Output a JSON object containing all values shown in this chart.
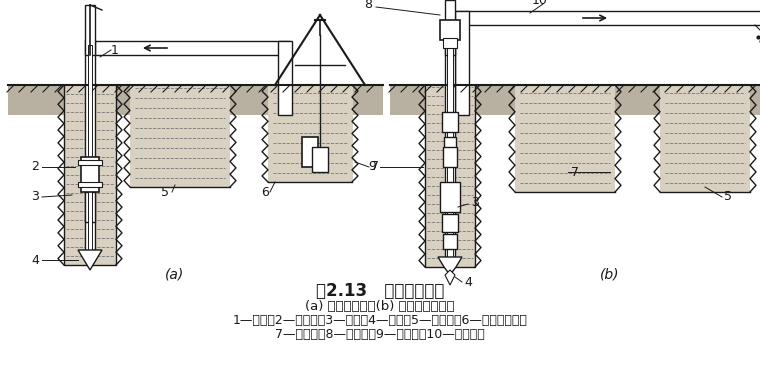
{
  "title": "图2.13   循环排渣方法",
  "subtitle": "(a) 正循环排渣；(b) 泵举反循环排渣",
  "legend1": "1—钻杆；2—送水管；3—主机；4—钻头；5—沉淀池；6—潜水泥浆泵；",
  "legend2": "7—泥浆池；8—砂石泵；9—抽渣管；10—排渣胶管",
  "label_a": "(a)",
  "label_b": "(b)",
  "bg": "#ffffff",
  "lc": "#1a1a1a",
  "ground_fill": "#b8b0a0",
  "mud_fill": "#d8d0c0",
  "title_fs": 12,
  "sub_fs": 9.5,
  "leg_fs": 9,
  "num_fs": 9
}
